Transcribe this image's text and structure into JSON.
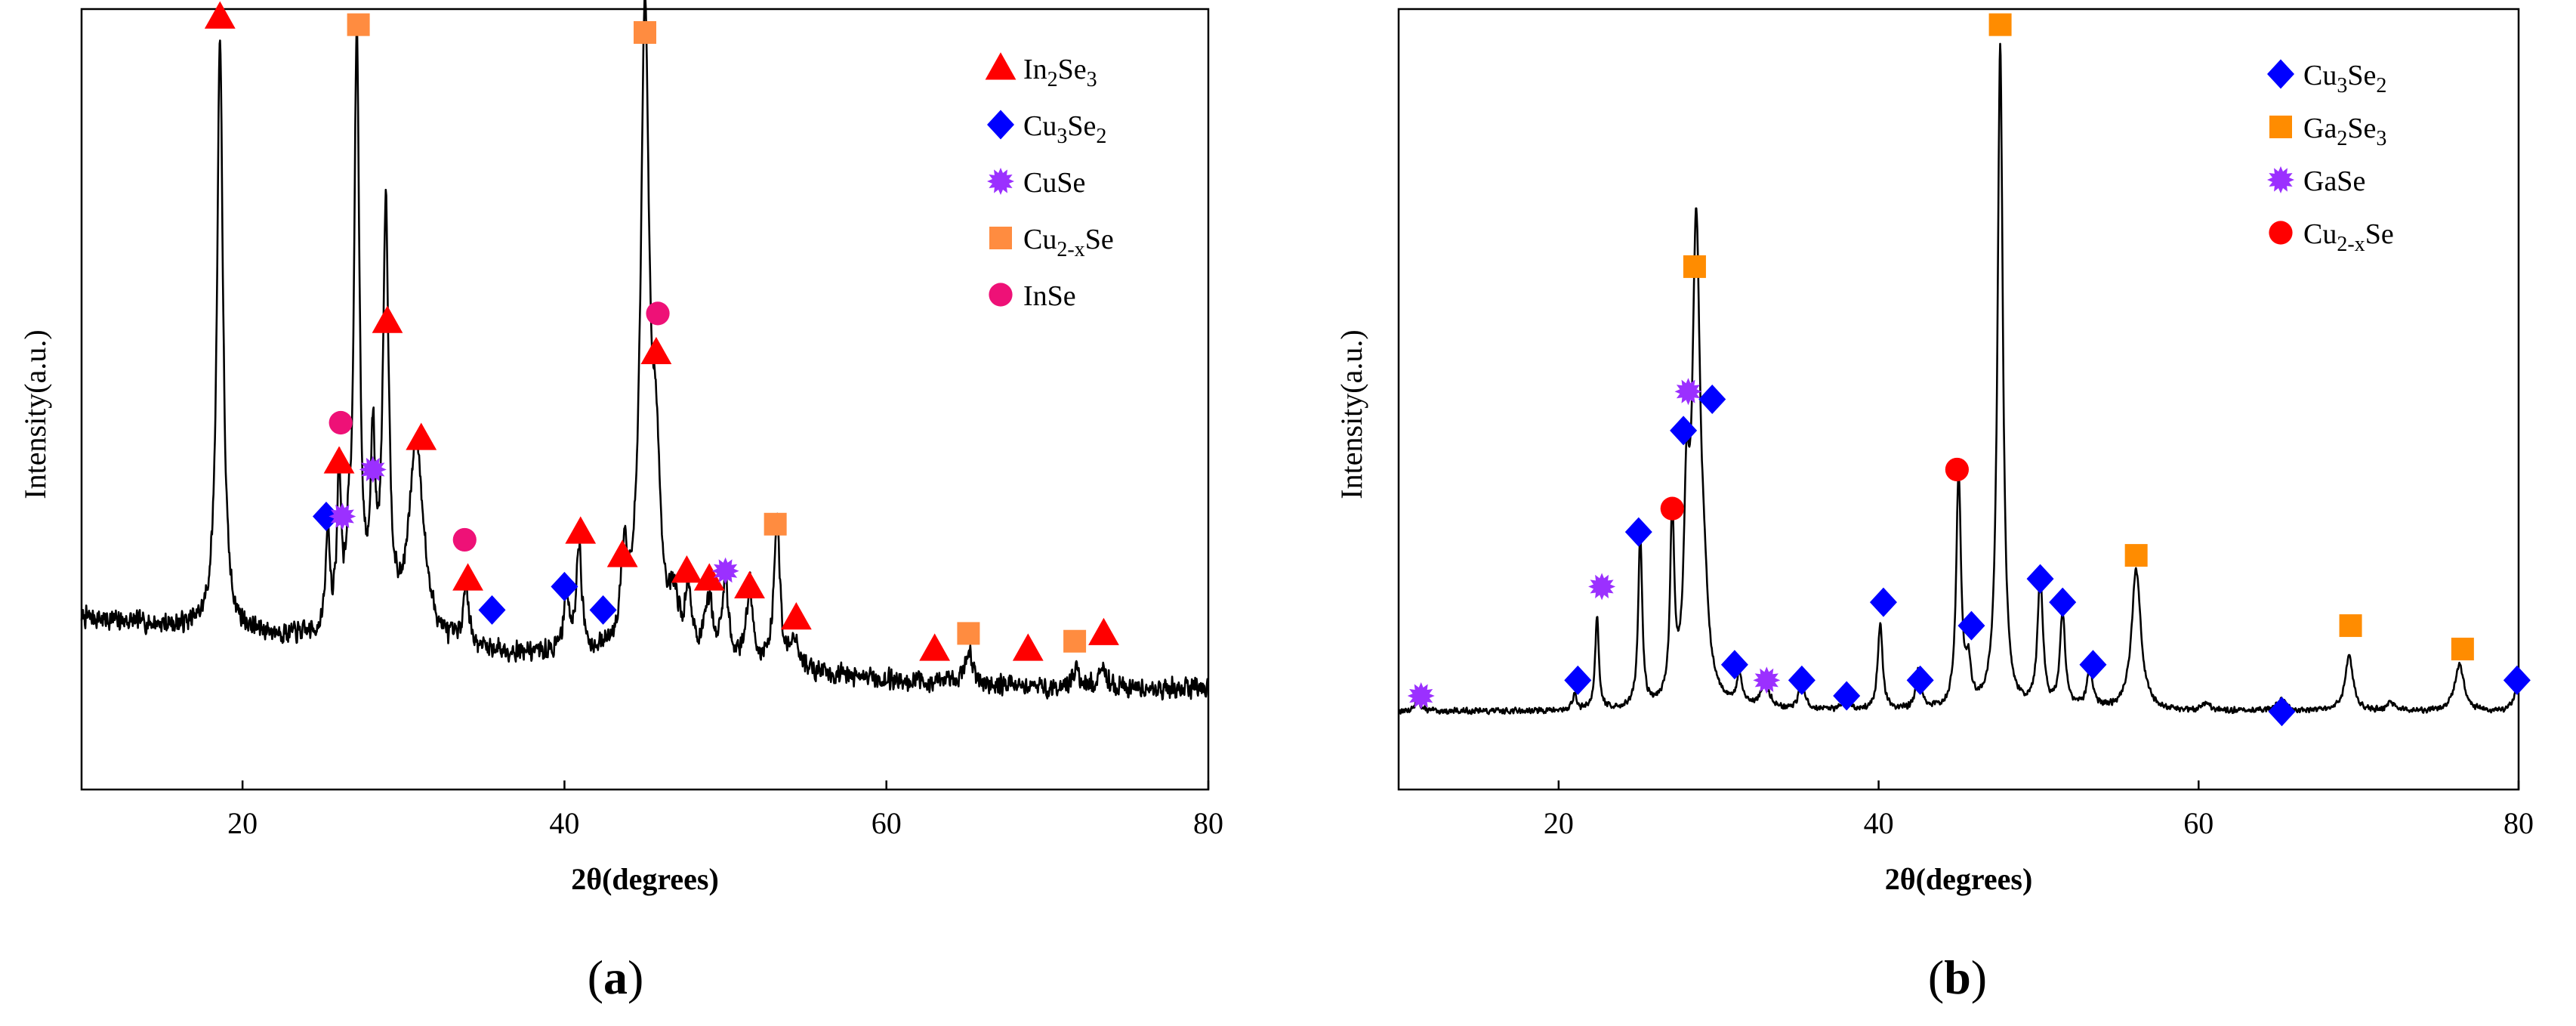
{
  "colors": {
    "In2Se3": "#ff0000",
    "Cu3Se2": "#0000ff",
    "CuSe": "#9b30ff",
    "Cu2xSe_a": "#ff8c40",
    "InSe": "#ee1177",
    "Ga2Se3": "#ff8c00",
    "GaSe": "#9b30ff",
    "Cu2xSe_b": "#ff0000",
    "trace": "#000000"
  },
  "chart_data": [
    {
      "type": "line",
      "panel_label": "(a)",
      "xlabel": "2θ(degrees)",
      "ylabel": "Intensity(a.u.)",
      "xlim": [
        10,
        80
      ],
      "ylim": [
        0,
        100
      ],
      "xticks": [
        20,
        40,
        60,
        80
      ],
      "yticks_shown": false,
      "legend_position": "top-right",
      "legend": [
        {
          "key": "In2Se3",
          "label_main": "In",
          "sub1": "2",
          "mid": "Se",
          "sub2": "3",
          "end": "",
          "marker": "triangle",
          "color": "#ff0000"
        },
        {
          "key": "Cu3Se2",
          "label_main": "Cu",
          "sub1": "3",
          "mid": "Se",
          "sub2": "2",
          "end": "",
          "marker": "diamond",
          "color": "#0000ff"
        },
        {
          "key": "CuSe",
          "label_main": "CuSe",
          "sub1": "",
          "mid": "",
          "sub2": "",
          "end": "",
          "marker": "star",
          "color": "#9b30ff"
        },
        {
          "key": "Cu2xSe",
          "label_main": "Cu",
          "sub1": "2-x",
          "mid": "Se",
          "sub2": "",
          "end": "",
          "marker": "square",
          "color": "#ff8c40"
        },
        {
          "key": "InSe",
          "label_main": "InSe",
          "sub1": "",
          "mid": "",
          "sub2": "",
          "end": "",
          "marker": "circle",
          "color": "#ee1177"
        }
      ],
      "baseline": [
        [
          10,
          22
        ],
        [
          20,
          20
        ],
        [
          30,
          18
        ],
        [
          40,
          17
        ],
        [
          50,
          16
        ],
        [
          60,
          14
        ],
        [
          70,
          13
        ],
        [
          80,
          13
        ]
      ],
      "peaks": [
        {
          "x": 18.6,
          "h": 76,
          "w": 0.22
        },
        {
          "x": 25.3,
          "h": 13,
          "w": 0.15
        },
        {
          "x": 26.0,
          "h": 20,
          "w": 0.15
        },
        {
          "x": 26.6,
          "h": 8,
          "w": 0.15
        },
        {
          "x": 27.1,
          "h": 76,
          "w": 0.2
        },
        {
          "x": 28.1,
          "h": 22,
          "w": 0.18
        },
        {
          "x": 28.9,
          "h": 54,
          "w": 0.22
        },
        {
          "x": 30.8,
          "h": 26,
          "w": 0.55
        },
        {
          "x": 33.9,
          "h": 8,
          "w": 0.2
        },
        {
          "x": 40.1,
          "h": 8,
          "w": 0.18
        },
        {
          "x": 40.9,
          "h": 14,
          "w": 0.2
        },
        {
          "x": 43.7,
          "h": 11,
          "w": 0.25
        },
        {
          "x": 45.0,
          "h": 81,
          "w": 0.32
        },
        {
          "x": 45.7,
          "h": 20,
          "w": 0.3
        },
        {
          "x": 46.8,
          "h": 6,
          "w": 0.4
        },
        {
          "x": 47.7,
          "h": 8,
          "w": 0.2
        },
        {
          "x": 49.0,
          "h": 7,
          "w": 0.3
        },
        {
          "x": 50.0,
          "h": 10,
          "w": 0.22
        },
        {
          "x": 51.5,
          "h": 10,
          "w": 0.22
        },
        {
          "x": 53.2,
          "h": 19,
          "w": 0.22
        },
        {
          "x": 54.3,
          "h": 4,
          "w": 0.25
        },
        {
          "x": 65.1,
          "h": 4,
          "w": 0.3
        },
        {
          "x": 71.8,
          "h": 2,
          "w": 0.3
        },
        {
          "x": 73.5,
          "h": 2,
          "w": 0.3
        }
      ],
      "noise": 1.6,
      "seed": 7,
      "markers": [
        {
          "x": 18.6,
          "y": 99,
          "type": "triangle",
          "color": "#ff0000"
        },
        {
          "x": 27.2,
          "y": 98,
          "type": "square",
          "color": "#ff8c40"
        },
        {
          "x": 45.0,
          "y": 97,
          "type": "square",
          "color": "#ff8c40"
        },
        {
          "x": 29.0,
          "y": 60,
          "type": "triangle",
          "color": "#ff0000"
        },
        {
          "x": 45.8,
          "y": 61,
          "type": "circle",
          "color": "#ee1177"
        },
        {
          "x": 45.7,
          "y": 56,
          "type": "triangle",
          "color": "#ff0000"
        },
        {
          "x": 26.1,
          "y": 47,
          "type": "circle",
          "color": "#ee1177"
        },
        {
          "x": 26.0,
          "y": 42,
          "type": "triangle",
          "color": "#ff0000"
        },
        {
          "x": 28.1,
          "y": 41,
          "type": "star",
          "color": "#9b30ff"
        },
        {
          "x": 31.1,
          "y": 45,
          "type": "triangle",
          "color": "#ff0000"
        },
        {
          "x": 25.2,
          "y": 35,
          "type": "diamond",
          "color": "#0000ff"
        },
        {
          "x": 26.2,
          "y": 35,
          "type": "star",
          "color": "#9b30ff"
        },
        {
          "x": 33.8,
          "y": 32,
          "type": "circle",
          "color": "#ee1177"
        },
        {
          "x": 34.0,
          "y": 27,
          "type": "triangle",
          "color": "#ff0000"
        },
        {
          "x": 35.5,
          "y": 23,
          "type": "diamond",
          "color": "#0000ff"
        },
        {
          "x": 40.0,
          "y": 26,
          "type": "diamond",
          "color": "#0000ff"
        },
        {
          "x": 41.0,
          "y": 33,
          "type": "triangle",
          "color": "#ff0000"
        },
        {
          "x": 42.4,
          "y": 23,
          "type": "diamond",
          "color": "#0000ff"
        },
        {
          "x": 43.6,
          "y": 30,
          "type": "triangle",
          "color": "#ff0000"
        },
        {
          "x": 47.6,
          "y": 28,
          "type": "triangle",
          "color": "#ff0000"
        },
        {
          "x": 49.0,
          "y": 27,
          "type": "triangle",
          "color": "#ff0000"
        },
        {
          "x": 50.0,
          "y": 28,
          "type": "star",
          "color": "#9b30ff"
        },
        {
          "x": 51.5,
          "y": 26,
          "type": "triangle",
          "color": "#ff0000"
        },
        {
          "x": 53.1,
          "y": 34,
          "type": "square",
          "color": "#ff8c40"
        },
        {
          "x": 54.4,
          "y": 22,
          "type": "triangle",
          "color": "#ff0000"
        },
        {
          "x": 63.0,
          "y": 18,
          "type": "triangle",
          "color": "#ff0000"
        },
        {
          "x": 65.1,
          "y": 20,
          "type": "square",
          "color": "#ff8c40"
        },
        {
          "x": 68.8,
          "y": 18,
          "type": "triangle",
          "color": "#ff0000"
        },
        {
          "x": 71.7,
          "y": 19,
          "type": "square",
          "color": "#ff8c40"
        },
        {
          "x": 73.5,
          "y": 20,
          "type": "triangle",
          "color": "#ff0000"
        }
      ]
    },
    {
      "type": "line",
      "panel_label": "(b)",
      "xlabel": "2θ(degrees)",
      "ylabel": "Intensity(a.u.)",
      "xlim": [
        10,
        80
      ],
      "ylim": [
        0,
        100
      ],
      "xticks": [
        20,
        40,
        60,
        80
      ],
      "yticks_shown": false,
      "legend_position": "top-right",
      "legend": [
        {
          "key": "Cu3Se2",
          "label_main": "Cu",
          "sub1": "3",
          "mid": "Se",
          "sub2": "2",
          "end": "",
          "marker": "diamond",
          "color": "#0000ff"
        },
        {
          "key": "Ga2Se3",
          "label_main": "Ga",
          "sub1": "2",
          "mid": "Se",
          "sub2": "3",
          "end": "",
          "marker": "square",
          "color": "#ff8c00"
        },
        {
          "key": "GaSe",
          "label_main": "GaSe",
          "sub1": "",
          "mid": "",
          "sub2": "",
          "end": "",
          "marker": "star",
          "color": "#9b30ff"
        },
        {
          "key": "Cu2xSe",
          "label_main": "Cu",
          "sub1": "2-x",
          "mid": "Se",
          "sub2": "",
          "end": "",
          "marker": "circle",
          "color": "#ff0000"
        }
      ],
      "baseline": [
        [
          10,
          10
        ],
        [
          80,
          10
        ]
      ],
      "peaks": [
        {
          "x": 11.2,
          "h": 1.5,
          "w": 0.2
        },
        {
          "x": 21.0,
          "h": 2,
          "w": 0.15
        },
        {
          "x": 22.4,
          "h": 12,
          "w": 0.14
        },
        {
          "x": 25.1,
          "h": 22,
          "w": 0.15
        },
        {
          "x": 27.1,
          "h": 24,
          "w": 0.15
        },
        {
          "x": 28.0,
          "h": 22,
          "w": 0.2
        },
        {
          "x": 28.6,
          "h": 60,
          "w": 0.3
        },
        {
          "x": 29.1,
          "h": 8,
          "w": 0.3
        },
        {
          "x": 31.3,
          "h": 4,
          "w": 0.2
        },
        {
          "x": 32.9,
          "h": 3,
          "w": 0.35
        },
        {
          "x": 35.2,
          "h": 4,
          "w": 0.2
        },
        {
          "x": 38.0,
          "h": 2,
          "w": 0.2
        },
        {
          "x": 40.1,
          "h": 11,
          "w": 0.18
        },
        {
          "x": 42.5,
          "h": 5,
          "w": 0.2
        },
        {
          "x": 45.0,
          "h": 30,
          "w": 0.18
        },
        {
          "x": 45.6,
          "h": 5,
          "w": 0.2
        },
        {
          "x": 47.6,
          "h": 85,
          "w": 0.2
        },
        {
          "x": 50.1,
          "h": 17,
          "w": 0.2
        },
        {
          "x": 51.5,
          "h": 12,
          "w": 0.2
        },
        {
          "x": 53.2,
          "h": 5,
          "w": 0.22
        },
        {
          "x": 56.1,
          "h": 18,
          "w": 0.35
        },
        {
          "x": 60.5,
          "h": 1,
          "w": 0.3
        },
        {
          "x": 65.2,
          "h": 1.5,
          "w": 0.3
        },
        {
          "x": 69.4,
          "h": 7,
          "w": 0.3
        },
        {
          "x": 72.0,
          "h": 1,
          "w": 0.3
        },
        {
          "x": 76.3,
          "h": 6,
          "w": 0.35
        },
        {
          "x": 79.9,
          "h": 3,
          "w": 0.25
        }
      ],
      "noise": 0.45,
      "seed": 13,
      "markers": [
        {
          "x": 47.6,
          "y": 98,
          "type": "square",
          "color": "#ff8c00"
        },
        {
          "x": 28.5,
          "y": 67,
          "type": "square",
          "color": "#ff8c00"
        },
        {
          "x": 28.1,
          "y": 51,
          "type": "star",
          "color": "#9b30ff"
        },
        {
          "x": 29.6,
          "y": 50,
          "type": "diamond",
          "color": "#0000ff"
        },
        {
          "x": 27.8,
          "y": 46,
          "type": "diamond",
          "color": "#0000ff"
        },
        {
          "x": 44.9,
          "y": 41,
          "type": "circle",
          "color": "#ff0000"
        },
        {
          "x": 27.1,
          "y": 36,
          "type": "circle",
          "color": "#ff0000"
        },
        {
          "x": 25.0,
          "y": 33,
          "type": "diamond",
          "color": "#0000ff"
        },
        {
          "x": 56.1,
          "y": 30,
          "type": "square",
          "color": "#ff8c00"
        },
        {
          "x": 22.7,
          "y": 26,
          "type": "star",
          "color": "#9b30ff"
        },
        {
          "x": 50.1,
          "y": 27,
          "type": "diamond",
          "color": "#0000ff"
        },
        {
          "x": 40.3,
          "y": 24,
          "type": "diamond",
          "color": "#0000ff"
        },
        {
          "x": 51.5,
          "y": 24,
          "type": "diamond",
          "color": "#0000ff"
        },
        {
          "x": 45.8,
          "y": 21,
          "type": "diamond",
          "color": "#0000ff"
        },
        {
          "x": 69.5,
          "y": 21,
          "type": "square",
          "color": "#ff8c00"
        },
        {
          "x": 11.4,
          "y": 12,
          "type": "star",
          "color": "#9b30ff"
        },
        {
          "x": 21.2,
          "y": 14,
          "type": "diamond",
          "color": "#0000ff"
        },
        {
          "x": 31.0,
          "y": 16,
          "type": "diamond",
          "color": "#0000ff"
        },
        {
          "x": 33.0,
          "y": 14,
          "type": "star",
          "color": "#9b30ff"
        },
        {
          "x": 35.2,
          "y": 14,
          "type": "diamond",
          "color": "#0000ff"
        },
        {
          "x": 38.0,
          "y": 12,
          "type": "diamond",
          "color": "#0000ff"
        },
        {
          "x": 42.6,
          "y": 14,
          "type": "diamond",
          "color": "#0000ff"
        },
        {
          "x": 53.4,
          "y": 16,
          "type": "diamond",
          "color": "#0000ff"
        },
        {
          "x": 65.2,
          "y": 10,
          "type": "diamond",
          "color": "#0000ff"
        },
        {
          "x": 76.5,
          "y": 18,
          "type": "square",
          "color": "#ff8c00"
        },
        {
          "x": 79.9,
          "y": 14,
          "type": "diamond",
          "color": "#0000ff"
        }
      ]
    }
  ]
}
